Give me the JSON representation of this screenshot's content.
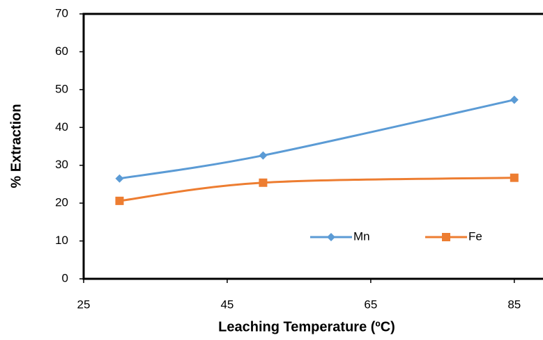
{
  "chart_data": {
    "type": "line",
    "x_label": "Leaching Temperature (ºC)",
    "y_label": "% Extraction",
    "x": [
      30,
      50,
      85
    ],
    "series": [
      {
        "name": "Mn",
        "color": "#5b9bd5",
        "marker": "diamond",
        "values": [
          26.5,
          32.6,
          47.3
        ]
      },
      {
        "name": "Fe",
        "color": "#ed7d31",
        "marker": "square",
        "values": [
          20.6,
          25.4,
          26.7
        ]
      }
    ],
    "xlim": [
      25,
      89
    ],
    "xticks": [
      25,
      45,
      65,
      85
    ],
    "ylim": [
      0,
      70
    ],
    "yticks": [
      0,
      10,
      20,
      30,
      40,
      50,
      60,
      70
    ],
    "smooth": true,
    "grid": false,
    "legend": "lower-right"
  }
}
